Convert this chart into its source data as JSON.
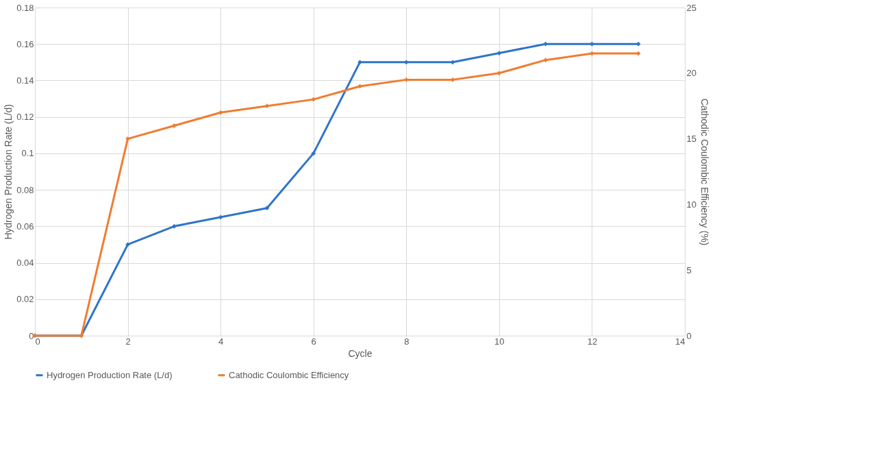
{
  "chart_data": {
    "type": "line",
    "xlabel": "Cycle",
    "ylabel": "Hydrogen Production Rate (L/d)",
    "y2label": "Cathodic Coulombic Efficiency (%)",
    "x": [
      0,
      1,
      2,
      3,
      4,
      5,
      6,
      7,
      8,
      9,
      10,
      11,
      12,
      13
    ],
    "series": [
      {
        "name": "Hydrogen Production Rate (L/d)",
        "color": "#2e75c8",
        "values": [
          0,
          0,
          0.05,
          0.06,
          0.065,
          0.07,
          0.1,
          0.15,
          0.15,
          0.15,
          0.155,
          0.16,
          0.16,
          0.16
        ]
      },
      {
        "name": "Cathodic Coulombic Efficiency",
        "color": "#f07c30",
        "axis": "y2",
        "values": [
          0,
          0,
          15,
          16,
          17,
          17.5,
          18,
          19,
          19.5,
          19.5,
          20,
          21,
          21.5,
          21.5
        ]
      }
    ],
    "xlim": [
      0,
      14
    ],
    "xticks": [
      0,
      2,
      4,
      6,
      8,
      10,
      12,
      14
    ],
    "ylim": [
      0,
      0.18
    ],
    "yticks": [
      0,
      0.02,
      0.04,
      0.06,
      0.08,
      0.1,
      0.12,
      0.14,
      0.16,
      0.18
    ],
    "y2lim": [
      0,
      25
    ],
    "y2ticks": [
      0,
      5,
      10,
      15,
      20,
      25
    ],
    "grid": true,
    "legend": "bottom",
    "marker": "diamond",
    "line_style": "solid"
  }
}
